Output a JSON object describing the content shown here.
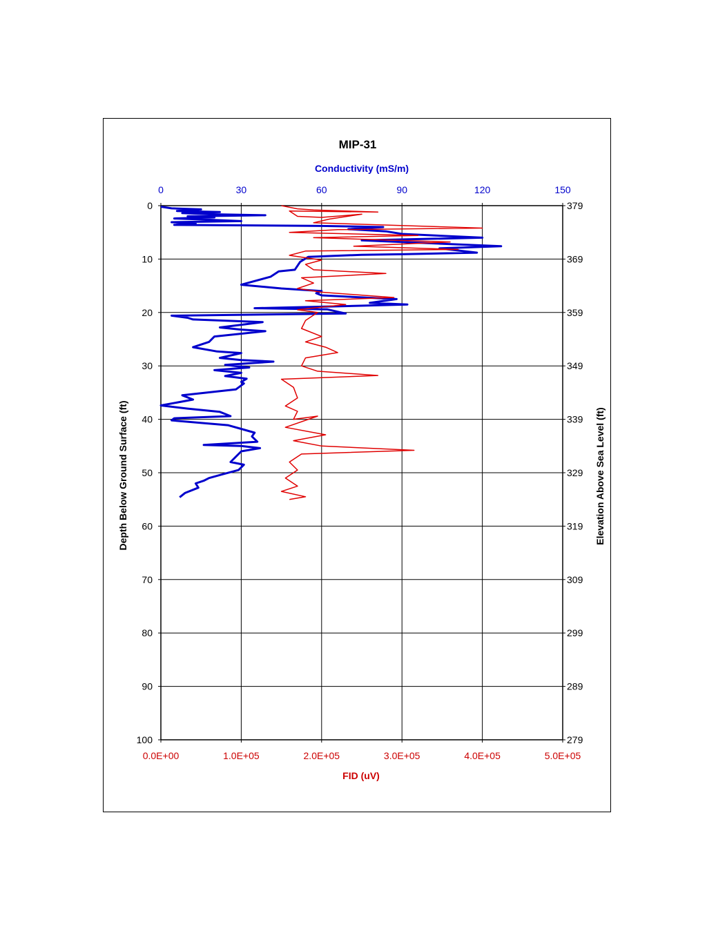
{
  "chart_data": {
    "type": "line",
    "title": "MIP-31",
    "orientation": "depth-profile",
    "top_axis": {
      "label": "Conductivity (mS/m)",
      "range": [
        0,
        150
      ],
      "ticks": [
        0,
        30,
        60,
        90,
        120,
        150
      ],
      "tick_labels": [
        "0",
        "30",
        "60",
        "90",
        "120",
        "150"
      ],
      "color": "#0000cc"
    },
    "bottom_axis": {
      "label": "FID (uV)",
      "range": [
        0,
        500000
      ],
      "ticks": [
        0,
        100000,
        200000,
        300000,
        400000,
        500000
      ],
      "tick_labels": [
        "0.0E+00",
        "1.0E+05",
        "2.0E+05",
        "3.0E+05",
        "4.0E+05",
        "5.0E+05"
      ],
      "color": "#cc0000"
    },
    "left_axis": {
      "label": "Depth Below Ground Surface (ft)",
      "range": [
        0,
        100
      ],
      "inverted": true,
      "ticks": [
        0,
        10,
        20,
        30,
        40,
        50,
        60,
        70,
        80,
        90,
        100
      ],
      "tick_labels": [
        "0",
        "10",
        "20",
        "30",
        "40",
        "50",
        "60",
        "70",
        "80",
        "90",
        "100"
      ]
    },
    "right_axis": {
      "label": "Elevation Above Sea Level (ft)",
      "tick_labels": [
        "379",
        "369",
        "359",
        "349",
        "339",
        "329",
        "319",
        "309",
        "299",
        "289",
        "279"
      ]
    },
    "grid": true,
    "series": [
      {
        "axis": "top",
        "color": "#0000cc",
        "points": [
          [
            0,
            0.2
          ],
          [
            4,
            0.5
          ],
          [
            15,
            0.7
          ],
          [
            6,
            1.0
          ],
          [
            22,
            1.2
          ],
          [
            8,
            1.4
          ],
          [
            18,
            1.6
          ],
          [
            39,
            1.8
          ],
          [
            10,
            2.0
          ],
          [
            20,
            2.2
          ],
          [
            5,
            2.4
          ],
          [
            16,
            2.6
          ],
          [
            30,
            2.9
          ],
          [
            4,
            3.1
          ],
          [
            13,
            3.3
          ],
          [
            5,
            3.6
          ],
          [
            60,
            3.8
          ],
          [
            83,
            4.0
          ],
          [
            70,
            4.4
          ],
          [
            84,
            4.8
          ],
          [
            90,
            5.3
          ],
          [
            120,
            6.0
          ],
          [
            75,
            6.5
          ],
          [
            127,
            7.6
          ],
          [
            104,
            8.0
          ],
          [
            118,
            8.8
          ],
          [
            90,
            9.1
          ],
          [
            75,
            9.2
          ],
          [
            55,
            9.6
          ],
          [
            52,
            10.5
          ],
          [
            50,
            12.0
          ],
          [
            44,
            12.3
          ],
          [
            41,
            13.3
          ],
          [
            30,
            14.8
          ],
          [
            45,
            15.5
          ],
          [
            60,
            16.0
          ],
          [
            58,
            16.4
          ],
          [
            60,
            16.8
          ],
          [
            88,
            17.5
          ],
          [
            78,
            18.2
          ],
          [
            92,
            18.5
          ],
          [
            70,
            18.8
          ],
          [
            35,
            19.2
          ],
          [
            62,
            19.4
          ],
          [
            69,
            20.2
          ],
          [
            4,
            20.6
          ],
          [
            10,
            21.0
          ],
          [
            12,
            21.3
          ],
          [
            38,
            21.8
          ],
          [
            22,
            22.8
          ],
          [
            30,
            23.2
          ],
          [
            39,
            23.5
          ],
          [
            20,
            24.5
          ],
          [
            18,
            25.5
          ],
          [
            12,
            26.5
          ],
          [
            21,
            27.3
          ],
          [
            30,
            27.6
          ],
          [
            22,
            28.5
          ],
          [
            30,
            28.9
          ],
          [
            42,
            29.2
          ],
          [
            24,
            29.8
          ],
          [
            33,
            30.3
          ],
          [
            20,
            30.8
          ],
          [
            30,
            31.3
          ],
          [
            24,
            31.9
          ],
          [
            32,
            32.4
          ],
          [
            30,
            33.0
          ],
          [
            31,
            33.3
          ],
          [
            28,
            34.4
          ],
          [
            8,
            35.5
          ],
          [
            12,
            36.3
          ],
          [
            0,
            37.4
          ],
          [
            10,
            38.0
          ],
          [
            22,
            38.6
          ],
          [
            26,
            39.4
          ],
          [
            5,
            39.8
          ],
          [
            4,
            40.2
          ],
          [
            25,
            41.1
          ],
          [
            30,
            41.8
          ],
          [
            35,
            42.5
          ],
          [
            34,
            43.2
          ],
          [
            36,
            44.2
          ],
          [
            16,
            44.8
          ],
          [
            30,
            45.0
          ],
          [
            37,
            45.4
          ],
          [
            30,
            46.0
          ],
          [
            28,
            47.0
          ],
          [
            26,
            48.0
          ],
          [
            31,
            48.5
          ],
          [
            29,
            49.5
          ],
          [
            23,
            50.3
          ],
          [
            18,
            51.0
          ],
          [
            16,
            51.5
          ],
          [
            13,
            52.0
          ],
          [
            14,
            52.8
          ],
          [
            9,
            53.8
          ],
          [
            7,
            54.6
          ]
        ]
      },
      {
        "axis": "bottom",
        "color": "#e00000",
        "points": [
          [
            150000,
            0
          ],
          [
            170000,
            0.6
          ],
          [
            190000,
            0.8
          ],
          [
            270000,
            1.2
          ],
          [
            160000,
            1.0
          ],
          [
            170000,
            2.0
          ],
          [
            200000,
            2.2
          ],
          [
            250000,
            1.6
          ],
          [
            210000,
            2.5
          ],
          [
            190000,
            3.2
          ],
          [
            400000,
            4.2
          ],
          [
            220000,
            4.5
          ],
          [
            160000,
            5.0
          ],
          [
            320000,
            5.6
          ],
          [
            190000,
            6.0
          ],
          [
            360000,
            6.8
          ],
          [
            240000,
            7.6
          ],
          [
            370000,
            8.2
          ],
          [
            180000,
            8.5
          ],
          [
            160000,
            9.3
          ],
          [
            200000,
            10.2
          ],
          [
            180000,
            11.0
          ],
          [
            190000,
            12.0
          ],
          [
            280000,
            12.7
          ],
          [
            175000,
            13.5
          ],
          [
            190000,
            14.5
          ],
          [
            170000,
            15.5
          ],
          [
            200000,
            16.2
          ],
          [
            290000,
            17.2
          ],
          [
            180000,
            17.8
          ],
          [
            230000,
            18.5
          ],
          [
            170000,
            19.5
          ],
          [
            195000,
            20.0
          ],
          [
            180000,
            21.5
          ],
          [
            175000,
            23.0
          ],
          [
            200000,
            24.5
          ],
          [
            180000,
            25.5
          ],
          [
            205000,
            26.5
          ],
          [
            220000,
            27.5
          ],
          [
            180000,
            28.5
          ],
          [
            175000,
            30.0
          ],
          [
            195000,
            31.0
          ],
          [
            270000,
            31.8
          ],
          [
            150000,
            32.5
          ],
          [
            165000,
            34.0
          ],
          [
            170000,
            36.0
          ],
          [
            155000,
            37.5
          ],
          [
            170000,
            38.5
          ],
          [
            165000,
            40.0
          ],
          [
            195000,
            39.4
          ],
          [
            155000,
            41.5
          ],
          [
            205000,
            42.9
          ],
          [
            165000,
            44.0
          ],
          [
            200000,
            45.0
          ],
          [
            315000,
            45.8
          ],
          [
            175000,
            46.5
          ],
          [
            160000,
            48.0
          ],
          [
            170000,
            49.5
          ],
          [
            155000,
            51.0
          ],
          [
            170000,
            52.5
          ],
          [
            150000,
            53.5
          ],
          [
            180000,
            54.5
          ],
          [
            160000,
            55.0
          ]
        ]
      }
    ]
  }
}
